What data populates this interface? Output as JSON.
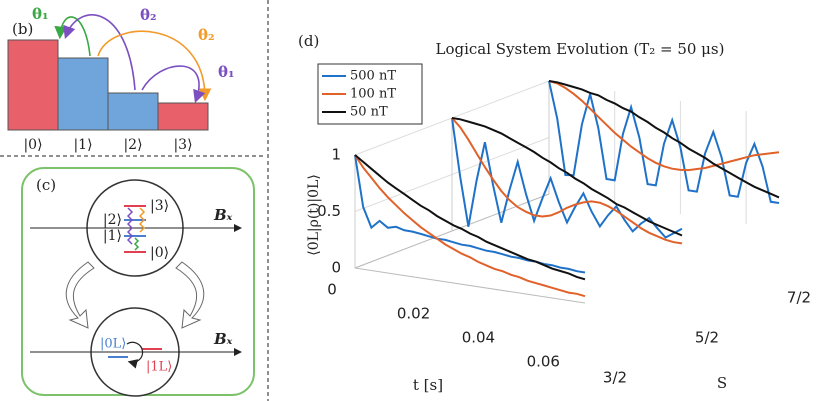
{
  "panel_b": {
    "label": "(b)",
    "levels": [
      "|0⟩",
      "|1⟩",
      "|2⟩",
      "|3⟩"
    ],
    "angles": [
      "θ₁",
      "θ₂",
      "θ₂",
      "θ₁"
    ]
  },
  "panel_c": {
    "label": "(c)",
    "levels": [
      "|3⟩",
      "|2⟩",
      "|1⟩",
      "|0⟩"
    ],
    "field": "Bₓ",
    "logical": [
      "|0L⟩",
      "|1L⟩"
    ]
  },
  "chart_data": {
    "type": "line3d",
    "panel_label": "(d)",
    "title": "Logical System Evolution (T₂ = 50 μs)",
    "xlabel": "t [s]",
    "ylabel": "⟨0L|ρ(t)|0L⟩",
    "slice_label": "S",
    "slices": [
      "3/2",
      "5/2",
      "7/2"
    ],
    "x": [
      0,
      0.0025,
      0.005,
      0.0075,
      0.01,
      0.0125,
      0.015,
      0.0175,
      0.02,
      0.0225,
      0.025,
      0.0275,
      0.03,
      0.0325,
      0.035,
      0.0375,
      0.04,
      0.0425,
      0.045,
      0.0475,
      0.05,
      0.0525,
      0.055,
      0.0575,
      0.06,
      0.0625,
      0.065,
      0.0675,
      0.07
    ],
    "xlim": [
      0,
      0.07
    ],
    "xticks": [
      0,
      0.02,
      0.04,
      0.06
    ],
    "ylim": [
      0,
      1
    ],
    "yticks": [
      0,
      0.5,
      1
    ],
    "legend": "upper left",
    "grid": true,
    "series": [
      {
        "name": "500 nT",
        "color": "#1f72c8",
        "values": [
          [
            1,
            0.55,
            0.38,
            0.45,
            0.4,
            0.42,
            0.4,
            0.4,
            0.39,
            0.38,
            0.37,
            0.37,
            0.36,
            0.35,
            0.35,
            0.34,
            0.33,
            0.33,
            0.32,
            0.31,
            0.31,
            0.3,
            0.3,
            0.29,
            0.29,
            0.28,
            0.28,
            0.27,
            0.27
          ],
          [
            1,
            0.49,
            0.06,
            0.48,
            0.83,
            0.46,
            0.14,
            0.44,
            0.7,
            0.43,
            0.2,
            0.41,
            0.6,
            0.4,
            0.23,
            0.38,
            0.51,
            0.36,
            0.24,
            0.35,
            0.44,
            0.33,
            0.24,
            0.32,
            0.38,
            0.3,
            0.23,
            0.28,
            0.33
          ],
          [
            1,
            0.68,
            0.19,
            0.2,
            0.66,
            0.94,
            0.65,
            0.21,
            0.21,
            0.63,
            0.88,
            0.62,
            0.22,
            0.22,
            0.6,
            0.82,
            0.59,
            0.22,
            0.22,
            0.57,
            0.77,
            0.56,
            0.23,
            0.23,
            0.54,
            0.72,
            0.53,
            0.23,
            0.23
          ]
        ]
      },
      {
        "name": "100 nT",
        "color": "#e0622a",
        "values": [
          [
            1,
            0.9,
            0.82,
            0.74,
            0.67,
            0.61,
            0.55,
            0.5,
            0.45,
            0.41,
            0.37,
            0.33,
            0.3,
            0.27,
            0.25,
            0.22,
            0.2,
            0.18,
            0.17,
            0.15,
            0.14,
            0.12,
            0.11,
            0.1,
            0.09,
            0.08,
            0.07,
            0.07,
            0.06
          ],
          [
            1,
            0.93,
            0.83,
            0.72,
            0.61,
            0.51,
            0.42,
            0.35,
            0.3,
            0.27,
            0.25,
            0.25,
            0.27,
            0.31,
            0.36,
            0.4,
            0.43,
            0.45,
            0.45,
            0.43,
            0.4,
            0.36,
            0.32,
            0.28,
            0.25,
            0.23,
            0.21,
            0.2,
            0.2
          ],
          [
            1,
            0.99,
            0.96,
            0.92,
            0.87,
            0.81,
            0.75,
            0.69,
            0.63,
            0.58,
            0.53,
            0.49,
            0.45,
            0.42,
            0.4,
            0.39,
            0.39,
            0.4,
            0.42,
            0.44,
            0.47,
            0.5,
            0.53,
            0.56,
            0.59,
            0.62,
            0.64,
            0.66,
            0.68
          ]
        ]
      },
      {
        "name": "50 nT",
        "color": "#111111",
        "values": [
          [
            1,
            0.95,
            0.9,
            0.85,
            0.8,
            0.76,
            0.72,
            0.68,
            0.64,
            0.61,
            0.57,
            0.54,
            0.51,
            0.49,
            0.46,
            0.44,
            0.41,
            0.39,
            0.37,
            0.35,
            0.33,
            0.31,
            0.3,
            0.28,
            0.26,
            0.25,
            0.24,
            0.22,
            0.21
          ],
          [
            1,
            1,
            0.99,
            0.98,
            0.97,
            0.95,
            0.93,
            0.9,
            0.87,
            0.84,
            0.81,
            0.77,
            0.74,
            0.7,
            0.67,
            0.63,
            0.6,
            0.56,
            0.53,
            0.5,
            0.46,
            0.44,
            0.41,
            0.38,
            0.35,
            0.33,
            0.31,
            0.29,
            0.27
          ],
          [
            1,
            1,
            0.99,
            0.98,
            0.97,
            0.95,
            0.94,
            0.91,
            0.89,
            0.86,
            0.84,
            0.8,
            0.77,
            0.73,
            0.7,
            0.66,
            0.63,
            0.59,
            0.56,
            0.53,
            0.49,
            0.46,
            0.43,
            0.4,
            0.37,
            0.34,
            0.32,
            0.3,
            0.28
          ]
        ]
      }
    ]
  }
}
